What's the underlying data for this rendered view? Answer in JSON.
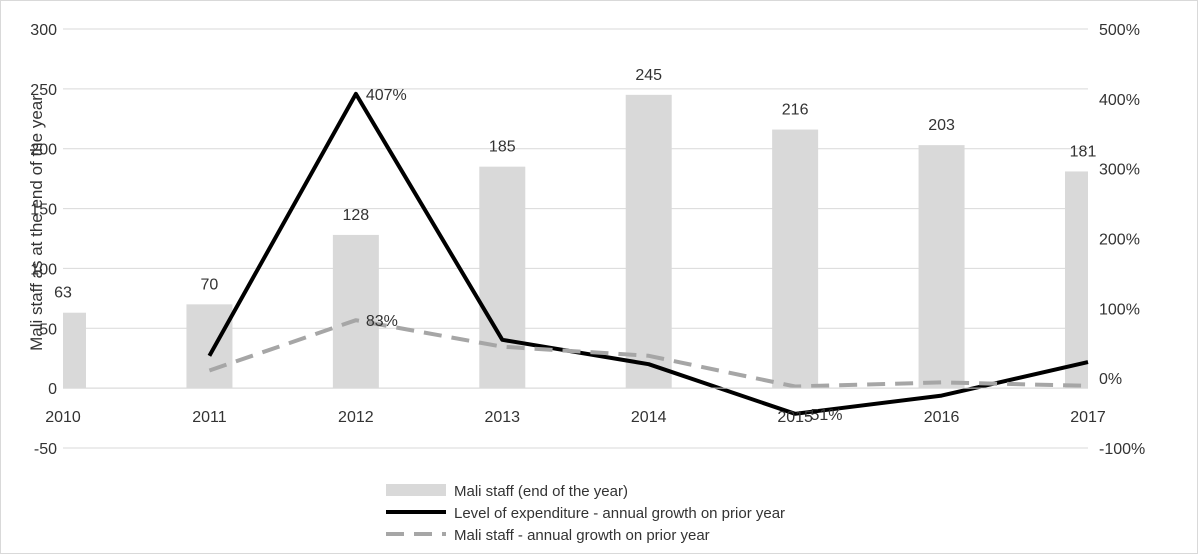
{
  "chart_data": {
    "type": "bar",
    "x": [
      "2010",
      "2011",
      "2012",
      "2013",
      "2014",
      "2015",
      "2016",
      "2017"
    ],
    "ylabel": "Mali staff as at the end of the year",
    "ylim": [
      -50,
      300
    ],
    "y_ticks": [
      "300",
      "250",
      "200",
      "150",
      "100",
      "50",
      "0",
      "-50"
    ],
    "y2lim": [
      -100,
      500
    ],
    "y2_ticks": [
      "500%",
      "400%",
      "300%",
      "200%",
      "100%",
      "0%",
      "-100%"
    ],
    "grid": true,
    "legend_position": "bottom",
    "series": [
      {
        "name": "Mali staff (end of the year)",
        "type": "bar",
        "axis": "left",
        "color": "#d9d9d9",
        "values": [
          63,
          70,
          128,
          185,
          245,
          216,
          203,
          181
        ],
        "labels": [
          "63",
          "70",
          "128",
          "185",
          "245",
          "216",
          "203",
          "181"
        ]
      },
      {
        "name": "Level of expenditure - annual growth on prior year",
        "type": "line",
        "axis": "right",
        "color": "#000000",
        "style": "solid",
        "values": [
          null,
          32,
          407,
          55,
          20,
          -51,
          -25,
          23
        ],
        "labels": [
          null,
          null,
          "407%",
          null,
          null,
          "-51%",
          null,
          null
        ]
      },
      {
        "name": "Mali staff - annual growth on prior year",
        "type": "line",
        "axis": "right",
        "color": "#a6a6a6",
        "style": "dashed",
        "values": [
          null,
          11,
          83,
          45,
          32,
          -12,
          -6,
          -11
        ],
        "labels": [
          null,
          null,
          "83%",
          null,
          null,
          null,
          null,
          null
        ]
      }
    ]
  }
}
